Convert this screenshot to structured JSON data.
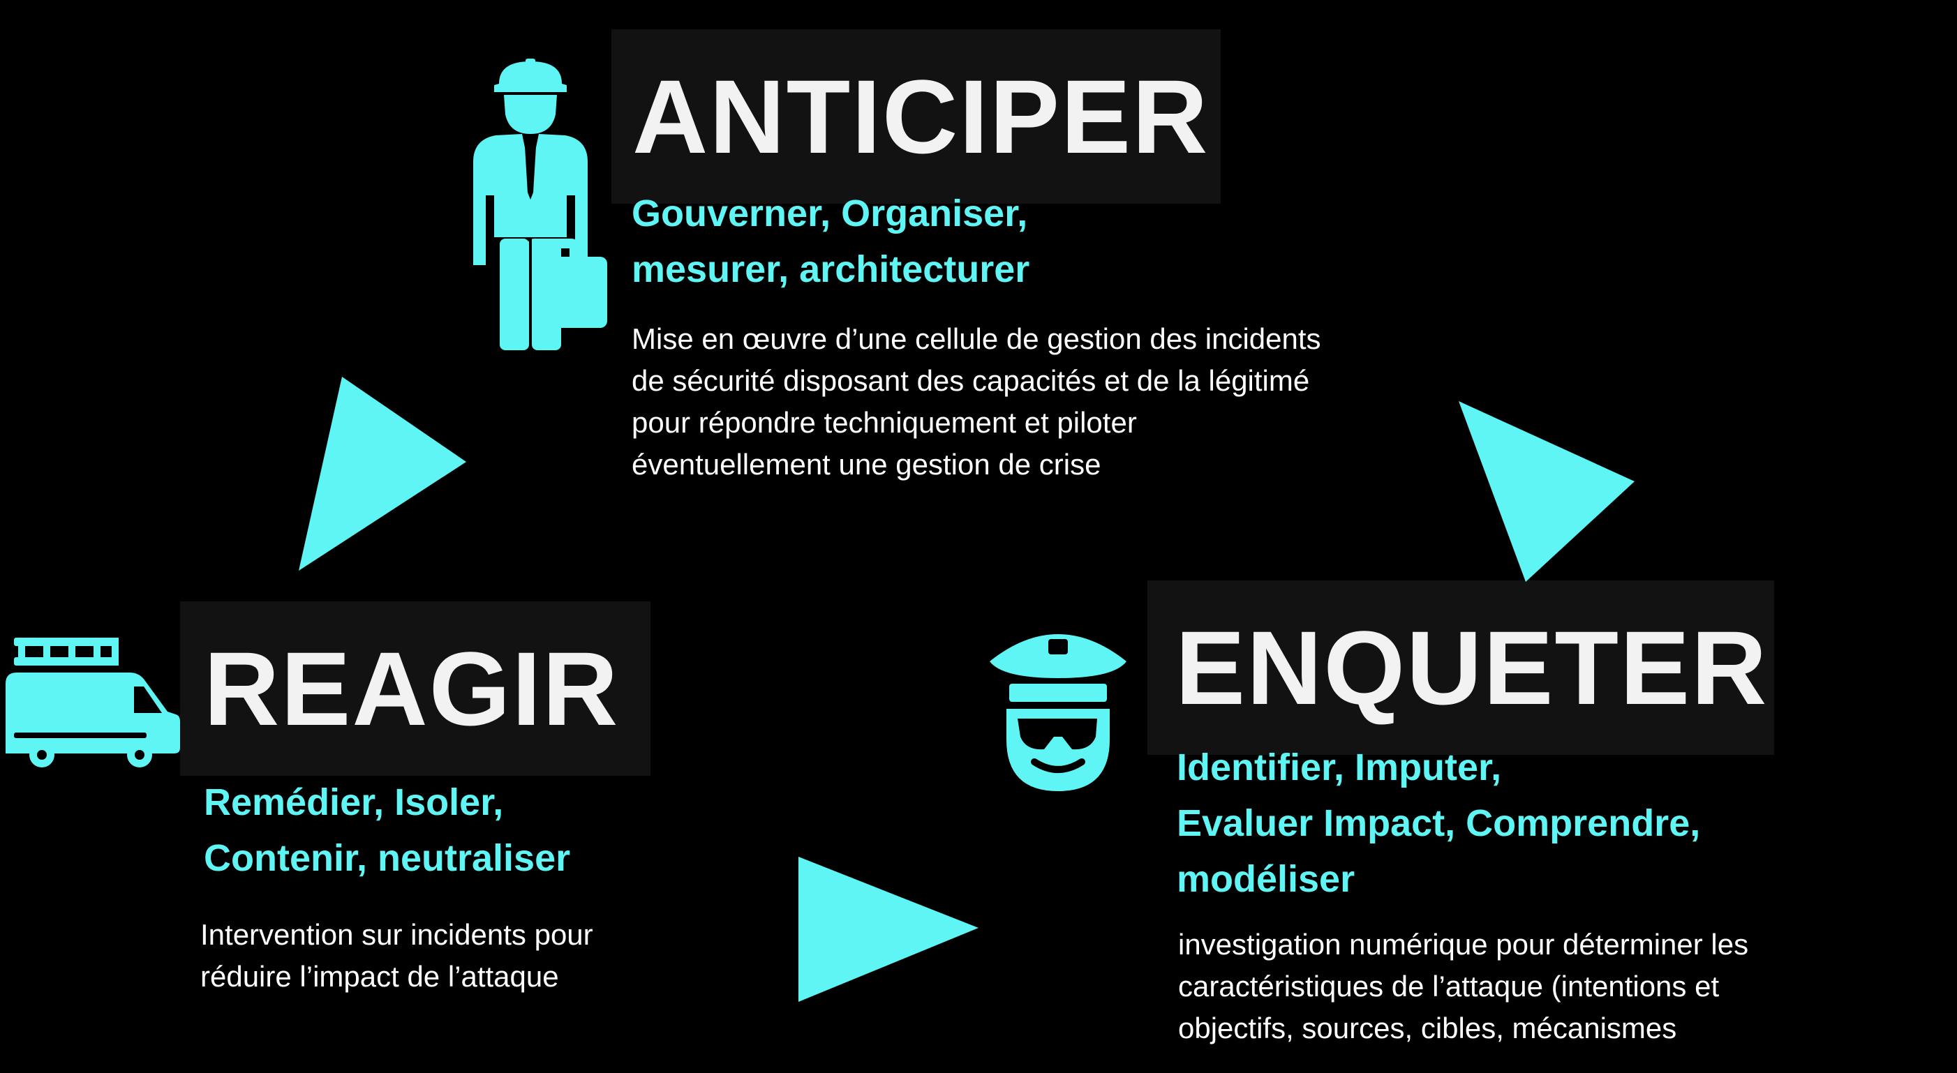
{
  "accent_color": "#5ff5f5",
  "anticiper": {
    "title": "ANTICIPER",
    "subtitle_lines": [
      "Gouverner, Organiser,",
      "mesurer, architecturer"
    ],
    "description_lines": [
      "Mise en œuvre d’une cellule de gestion des incidents",
      "de sécurité disposant des capacités et de la légitimé",
      "pour répondre techniquement et piloter",
      "éventuellement une gestion de crise"
    ],
    "icon": "businessman-icon"
  },
  "reagir": {
    "title": "REAGIR",
    "subtitle_lines": [
      "Remédier, Isoler,",
      "Contenir, neutraliser"
    ],
    "description_lines": [
      "Intervention sur incidents pour",
      "réduire l’impact de l’attaque"
    ],
    "icon": "fire-truck-icon"
  },
  "enqueter": {
    "title": "ENQUETER",
    "subtitle_lines": [
      "Identifier, Imputer,",
      "Evaluer Impact, Comprendre,",
      "modéliser"
    ],
    "description_lines": [
      "investigation numérique pour déterminer les",
      "caractéristiques de l’attaque (intentions et",
      "objectifs, sources, cibles,  mécanismes"
    ],
    "icon": "police-officer-icon"
  },
  "arrows": [
    {
      "name": "arrow-reagir-to-anticiper",
      "icon": "triangle-arrow-icon"
    },
    {
      "name": "arrow-anticiper-to-enqueter",
      "icon": "triangle-arrow-icon"
    },
    {
      "name": "arrow-reagir-to-enqueter",
      "icon": "triangle-arrow-icon"
    }
  ]
}
